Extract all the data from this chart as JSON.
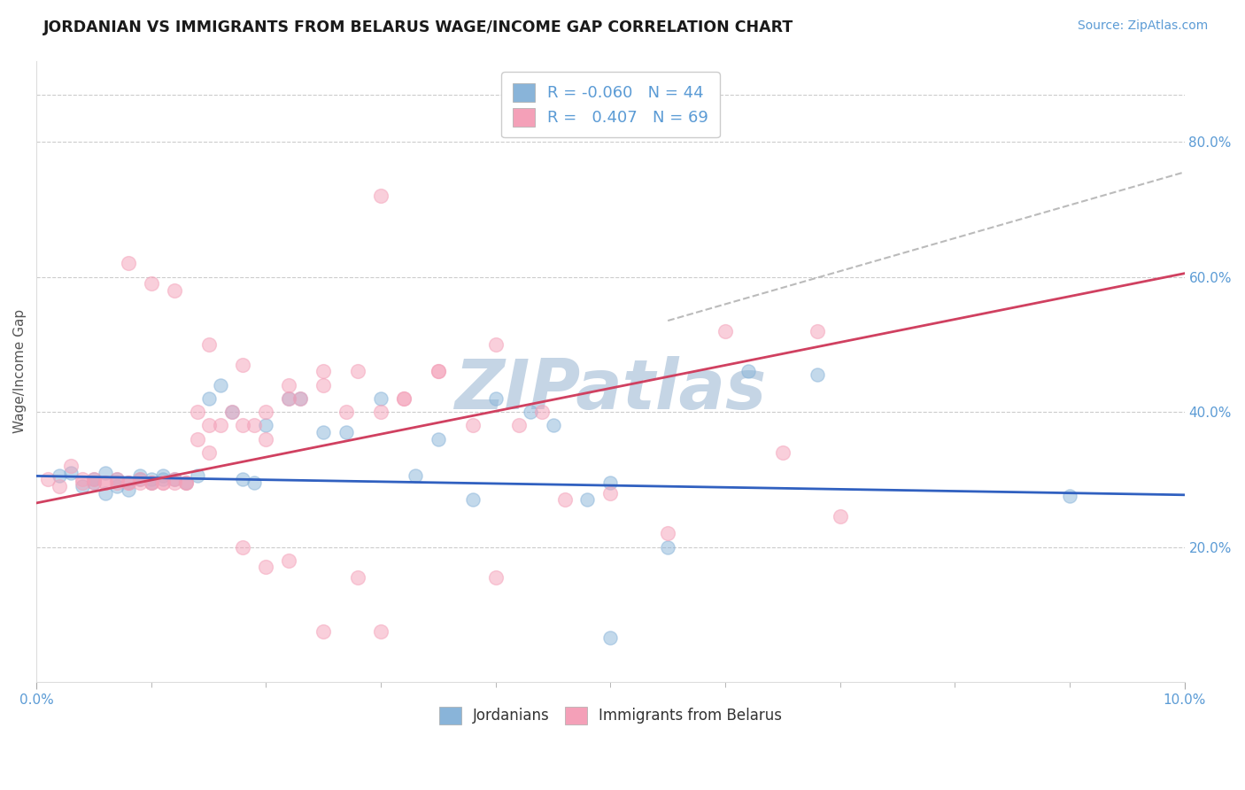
{
  "title": "JORDANIAN VS IMMIGRANTS FROM BELARUS WAGE/INCOME GAP CORRELATION CHART",
  "source_text": "Source: ZipAtlas.com",
  "ylabel": "Wage/Income Gap",
  "x_min": 0.0,
  "x_max": 0.1,
  "y_min": 0.0,
  "y_max": 0.92,
  "right_yticks": [
    0.2,
    0.4,
    0.6,
    0.8
  ],
  "right_ytick_labels": [
    "20.0%",
    "40.0%",
    "60.0%",
    "80.0%"
  ],
  "blue_color": "#89B4D9",
  "pink_color": "#F4A0B8",
  "blue_line_color": "#3060C0",
  "pink_line_color": "#D04060",
  "dashed_line_color": "#BBBBBB",
  "watermark": "ZIPatlas",
  "watermark_color": "#C5D5E5",
  "jordanians_label": "Jordanians",
  "belarus_label": "Immigrants from Belarus",
  "blue_line_x": [
    0.0,
    0.1
  ],
  "blue_line_y": [
    0.305,
    0.277
  ],
  "pink_line_x": [
    0.0,
    0.1
  ],
  "pink_line_y": [
    0.265,
    0.605
  ],
  "dashed_line_x": [
    0.055,
    0.1
  ],
  "dashed_line_y": [
    0.535,
    0.755
  ],
  "blue_scatter_x": [
    0.002,
    0.003,
    0.004,
    0.005,
    0.005,
    0.006,
    0.006,
    0.007,
    0.007,
    0.008,
    0.008,
    0.009,
    0.009,
    0.01,
    0.01,
    0.011,
    0.011,
    0.012,
    0.013,
    0.014,
    0.015,
    0.016,
    0.017,
    0.018,
    0.019,
    0.02,
    0.022,
    0.023,
    0.025,
    0.027,
    0.03,
    0.033,
    0.035,
    0.038,
    0.04,
    0.043,
    0.045,
    0.048,
    0.05,
    0.055,
    0.062,
    0.068,
    0.09,
    0.05
  ],
  "blue_scatter_y": [
    0.305,
    0.31,
    0.29,
    0.3,
    0.295,
    0.31,
    0.28,
    0.3,
    0.29,
    0.295,
    0.285,
    0.3,
    0.305,
    0.295,
    0.3,
    0.3,
    0.305,
    0.3,
    0.295,
    0.305,
    0.42,
    0.44,
    0.4,
    0.3,
    0.295,
    0.38,
    0.42,
    0.42,
    0.37,
    0.37,
    0.42,
    0.305,
    0.36,
    0.27,
    0.42,
    0.4,
    0.38,
    0.27,
    0.295,
    0.2,
    0.46,
    0.455,
    0.275,
    0.065
  ],
  "blue_scatter_size": 120,
  "pink_scatter_x": [
    0.001,
    0.002,
    0.003,
    0.004,
    0.004,
    0.005,
    0.005,
    0.006,
    0.006,
    0.007,
    0.007,
    0.008,
    0.008,
    0.009,
    0.009,
    0.01,
    0.01,
    0.011,
    0.011,
    0.012,
    0.012,
    0.013,
    0.013,
    0.014,
    0.014,
    0.015,
    0.015,
    0.016,
    0.017,
    0.018,
    0.019,
    0.02,
    0.02,
    0.022,
    0.023,
    0.025,
    0.027,
    0.03,
    0.032,
    0.035,
    0.038,
    0.04,
    0.042,
    0.044,
    0.046,
    0.05,
    0.055,
    0.06,
    0.065,
    0.07,
    0.008,
    0.01,
    0.012,
    0.015,
    0.018,
    0.022,
    0.025,
    0.028,
    0.032,
    0.035,
    0.018,
    0.02,
    0.022,
    0.028,
    0.04,
    0.025,
    0.03,
    0.068,
    0.03
  ],
  "pink_scatter_y": [
    0.3,
    0.29,
    0.32,
    0.295,
    0.3,
    0.295,
    0.3,
    0.295,
    0.295,
    0.3,
    0.295,
    0.295,
    0.295,
    0.295,
    0.3,
    0.295,
    0.295,
    0.295,
    0.295,
    0.295,
    0.3,
    0.295,
    0.295,
    0.36,
    0.4,
    0.38,
    0.34,
    0.38,
    0.4,
    0.38,
    0.38,
    0.36,
    0.4,
    0.42,
    0.42,
    0.44,
    0.4,
    0.4,
    0.42,
    0.46,
    0.38,
    0.5,
    0.38,
    0.4,
    0.27,
    0.28,
    0.22,
    0.52,
    0.34,
    0.245,
    0.62,
    0.59,
    0.58,
    0.5,
    0.47,
    0.44,
    0.46,
    0.46,
    0.42,
    0.46,
    0.2,
    0.17,
    0.18,
    0.155,
    0.155,
    0.075,
    0.075,
    0.52,
    0.72
  ],
  "pink_scatter_size": 130
}
